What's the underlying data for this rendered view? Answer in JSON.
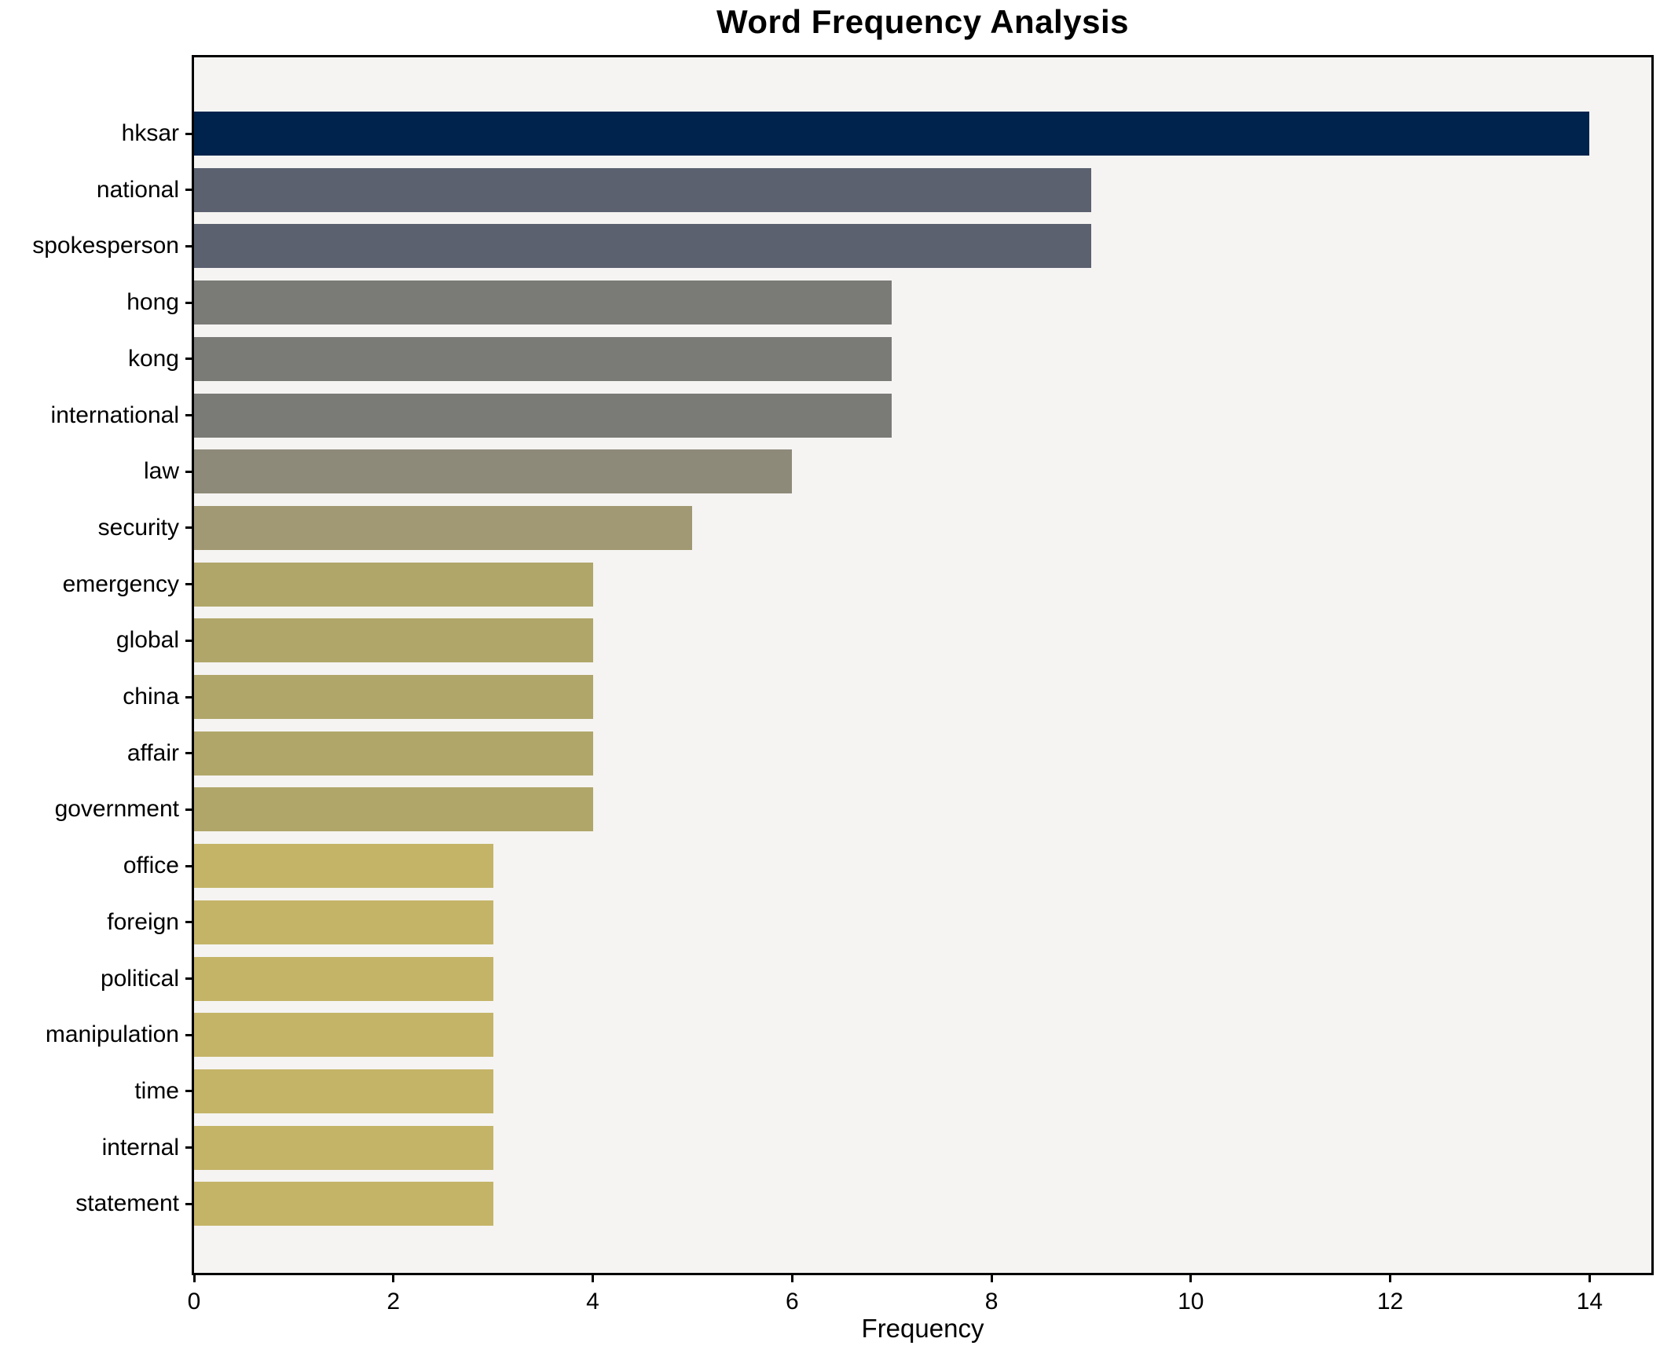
{
  "figure": {
    "background": "#ffffff"
  },
  "chart_data": {
    "type": "bar",
    "orientation": "horizontal",
    "title": "Word Frequency Analysis",
    "xlabel": "Frequency",
    "ylabel": "",
    "categories": [
      "hksar",
      "national",
      "spokesperson",
      "hong",
      "kong",
      "international",
      "law",
      "security",
      "emergency",
      "global",
      "china",
      "affair",
      "government",
      "office",
      "foreign",
      "political",
      "manipulation",
      "time",
      "internal",
      "statement"
    ],
    "values": [
      14,
      9,
      9,
      7,
      7,
      7,
      6,
      5,
      4,
      4,
      4,
      4,
      4,
      3,
      3,
      3,
      3,
      3,
      3,
      3
    ],
    "bar_colors": [
      "#00234d",
      "#5c6170",
      "#5c6170",
      "#7a7a77",
      "#7a7a77",
      "#7a7a77",
      "#8e8a7a",
      "#a09973",
      "#b0a669",
      "#b0a669",
      "#b0a669",
      "#b0a669",
      "#b0a669",
      "#c4b467",
      "#c4b467",
      "#c4b467",
      "#c4b467",
      "#c4b467",
      "#c4b467",
      "#c4b467"
    ],
    "xlim": [
      0,
      14.62
    ],
    "xticks": [
      0,
      2,
      4,
      6,
      8,
      10,
      12,
      14
    ],
    "grid": false,
    "legend": null,
    "plot_background": "#f5f4f2",
    "axis_color": "#000000",
    "text_color": "#000000"
  }
}
